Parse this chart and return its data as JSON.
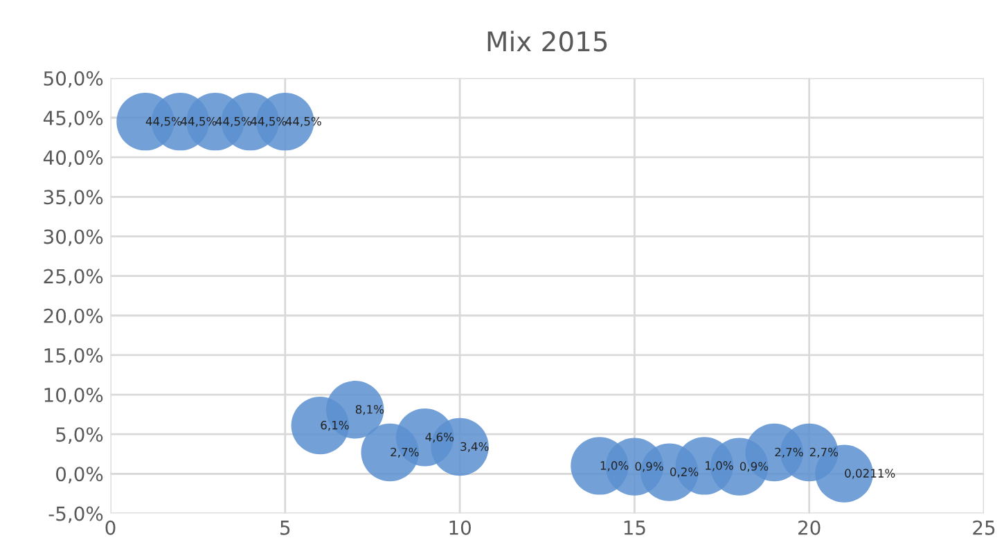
{
  "chart_data": {
    "type": "scatter",
    "title": "Mix 2015",
    "x": [
      1,
      2,
      3,
      4,
      5,
      6,
      7,
      8,
      9,
      10,
      14,
      15,
      16,
      17,
      18,
      19,
      20,
      21
    ],
    "series": [
      {
        "color": "#5b8fd0",
        "values": [
          44.5,
          44.5,
          44.5,
          44.5,
          44.5,
          6.1,
          8.1,
          2.7,
          4.6,
          3.4,
          1.0,
          0.9,
          0.2,
          1.0,
          0.9,
          2.7,
          2.7,
          0.0211
        ],
        "value_labels": [
          "44,5%",
          "44,5%",
          "44,5%",
          "44,5%",
          "44,5%",
          "6,1%",
          "8,1%",
          "2,7%",
          "4,6%",
          "3,4%",
          "1,0%",
          "0,9%",
          "0,2%",
          "1,0%",
          "0,9%",
          "2,7%",
          "2,7%",
          "0,0211%"
        ]
      }
    ],
    "marker": "circle",
    "xlim": [
      0,
      25
    ],
    "xticks": [
      0,
      5,
      10,
      15,
      20,
      25
    ],
    "ylim": [
      -5,
      50
    ],
    "yticks": [
      {
        "value": -5,
        "label": "-5,0%"
      },
      {
        "value": 0,
        "label": "0,0%"
      },
      {
        "value": 5,
        "label": "5,0%"
      },
      {
        "value": 10,
        "label": "10,0%"
      },
      {
        "value": 15,
        "label": "15,0%"
      },
      {
        "value": 20,
        "label": "20,0%"
      },
      {
        "value": 25,
        "label": "25,0%"
      },
      {
        "value": 30,
        "label": "30,0%"
      },
      {
        "value": 35,
        "label": "35,0%"
      },
      {
        "value": 40,
        "label": "40,0%"
      },
      {
        "value": 45,
        "label": "45,0%"
      },
      {
        "value": 50,
        "label": "50,0%"
      }
    ],
    "grid": true
  }
}
